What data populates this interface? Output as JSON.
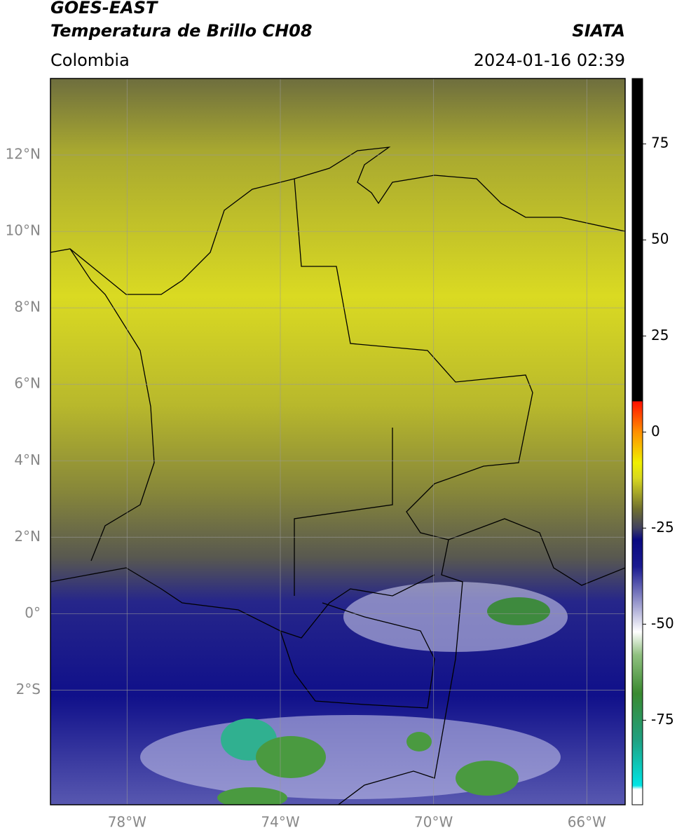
{
  "header": {
    "title": "GOES-EAST",
    "subtitle": "Temperatura de Brillo CH08",
    "source": "SIATA",
    "region": "Colombia",
    "datetime": "2024-01-16 02:39"
  },
  "map": {
    "xlim": [
      -80,
      -65
    ],
    "ylim": [
      -5,
      14
    ],
    "grid": true,
    "xticks": [
      {
        "value": -78,
        "label": "78°W"
      },
      {
        "value": -74,
        "label": "74°W"
      },
      {
        "value": -70,
        "label": "70°W"
      },
      {
        "value": -66,
        "label": "66°W"
      }
    ],
    "yticks": [
      {
        "value": 12,
        "label": "12°N"
      },
      {
        "value": 10,
        "label": "10°N"
      },
      {
        "value": 8,
        "label": "8°N"
      },
      {
        "value": 6,
        "label": "6°N"
      },
      {
        "value": 4,
        "label": "4°N"
      },
      {
        "value": 2,
        "label": "2°N"
      },
      {
        "value": 0,
        "label": "0°"
      },
      {
        "value": -2,
        "label": "2°S"
      }
    ]
  },
  "colorbar": {
    "lim": [
      -97,
      92
    ],
    "ticks": [
      75,
      50,
      25,
      0,
      -25,
      -50,
      -75
    ],
    "colormap": [
      {
        "value": -97,
        "color": "#ffffff"
      },
      {
        "value": -93,
        "color": "#ffffff"
      },
      {
        "value": -92,
        "color": "#00e5e5"
      },
      {
        "value": -80,
        "color": "#20a080"
      },
      {
        "value": -68,
        "color": "#3a8a30"
      },
      {
        "value": -58,
        "color": "#90c080"
      },
      {
        "value": -52,
        "color": "#ffffff"
      },
      {
        "value": -45,
        "color": "#a0a0d0"
      },
      {
        "value": -35,
        "color": "#1a1a90"
      },
      {
        "value": -28,
        "color": "#0a0a80"
      },
      {
        "value": -25,
        "color": "#404060"
      },
      {
        "value": -20,
        "color": "#707030"
      },
      {
        "value": -12,
        "color": "#d8d820"
      },
      {
        "value": -8,
        "color": "#f0f000"
      },
      {
        "value": 0,
        "color": "#ff9000"
      },
      {
        "value": 8,
        "color": "#ff1000"
      },
      {
        "value": 8,
        "color": "#000000"
      },
      {
        "value": 92,
        "color": "#000000"
      }
    ]
  }
}
